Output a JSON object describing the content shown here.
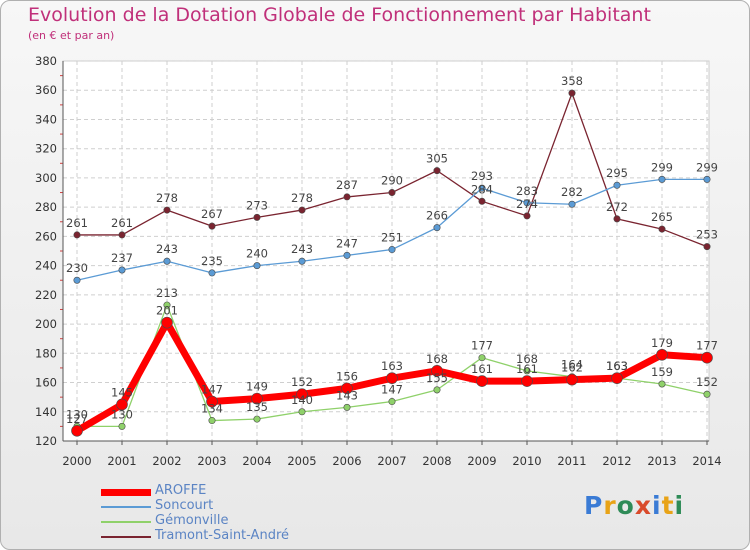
{
  "header": {
    "title": "Evolution de la Dotation Globale de Fonctionnement par Habitant",
    "subtitle": "(en € et par an)"
  },
  "logo": {
    "text": "Proxiti",
    "letter_colors": [
      "#3a7bd5",
      "#e8a317",
      "#2e8b57",
      "#d94a2b",
      "#3a7bd5",
      "#e8a317",
      "#2e8b57"
    ]
  },
  "chart_data": {
    "type": "line",
    "title": "Evolution de la Dotation Globale de Fonctionnement par Habitant",
    "subtitle": "(en € et par an)",
    "xlabel": "",
    "ylabel": "",
    "x": [
      2000,
      2001,
      2002,
      2003,
      2004,
      2005,
      2006,
      2007,
      2008,
      2009,
      2010,
      2011,
      2012,
      2013,
      2014
    ],
    "ylim": [
      120,
      380
    ],
    "yticks": [
      120,
      140,
      160,
      180,
      200,
      220,
      240,
      260,
      280,
      300,
      320,
      340,
      360,
      380
    ],
    "grid": true,
    "legend_position": "bottom-left",
    "series": [
      {
        "name": "Tramont-Saint-André",
        "color": "#7a2430",
        "values": [
          261,
          261,
          278,
          267,
          273,
          278,
          287,
          290,
          305,
          284,
          274,
          358,
          272,
          265,
          253
        ],
        "labels": [
          "261",
          "261",
          "278",
          "267",
          "273",
          "278",
          "287",
          "290",
          "305",
          "284",
          "274",
          "358",
          "272",
          "265",
          "253"
        ]
      },
      {
        "name": "Soncourt",
        "color": "#5b9bd5",
        "values": [
          230,
          237,
          243,
          235,
          240,
          243,
          247,
          251,
          266,
          293,
          283,
          282,
          295,
          299,
          299
        ],
        "labels": [
          "230",
          "237",
          "243",
          "235",
          "240",
          "243",
          "247",
          "251",
          "266",
          "293",
          "283",
          "282",
          "295",
          "299",
          "299"
        ]
      },
      {
        "name": "Gémonville",
        "color": "#8fd16a",
        "values": [
          130,
          130,
          213,
          134,
          135,
          140,
          143,
          147,
          155,
          177,
          168,
          164,
          163,
          159,
          152
        ],
        "labels": [
          "130",
          "130",
          "213",
          "134",
          "135",
          "140",
          "143",
          "147",
          "155",
          "177",
          "168",
          "164",
          "163",
          "159",
          "152"
        ]
      },
      {
        "name": "AROFFE",
        "color": "#ff0000",
        "values": [
          127,
          145,
          201,
          147,
          149,
          152,
          156,
          163,
          168,
          161,
          161,
          162,
          163,
          179,
          177
        ],
        "labels": [
          "127",
          "145",
          "201",
          "147",
          "149",
          "152",
          "156",
          "163",
          "168",
          "161",
          "161",
          "162",
          "163",
          "179",
          "177"
        ]
      }
    ]
  }
}
